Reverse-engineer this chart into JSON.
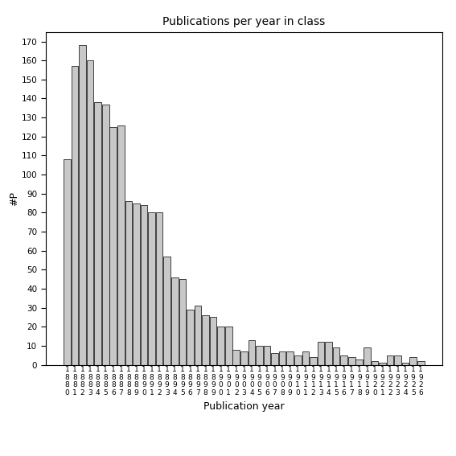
{
  "title": "Publications per year in class",
  "xlabel": "Publication year",
  "ylabel": "#P",
  "bar_color": "#c8c8c8",
  "edge_color": "#000000",
  "ylim": [
    0,
    175
  ],
  "yticks": [
    0,
    10,
    20,
    30,
    40,
    50,
    60,
    70,
    80,
    90,
    100,
    110,
    120,
    130,
    140,
    150,
    160,
    170
  ],
  "categories": [
    "1880",
    "1881",
    "1882",
    "1883",
    "1884",
    "1885",
    "1886",
    "1887",
    "1888",
    "1889",
    "1890",
    "1891",
    "1892",
    "1893",
    "1894",
    "1895",
    "1896",
    "1897",
    "1898",
    "1899",
    "1900",
    "1901",
    "1902",
    "1903",
    "1904",
    "1905",
    "1906",
    "1907",
    "1908",
    "1909",
    "1910",
    "1911",
    "1912",
    "1913",
    "1914",
    "1915",
    "1916",
    "1917",
    "1918",
    "1919",
    "1920",
    "1921",
    "1922",
    "1923",
    "1924",
    "1925",
    "1926"
  ],
  "values": [
    108,
    157,
    168,
    160,
    138,
    137,
    125,
    126,
    86,
    85,
    84,
    80,
    80,
    57,
    46,
    45,
    29,
    31,
    26,
    25,
    20,
    20,
    8,
    7,
    13,
    10,
    10,
    6,
    7,
    7,
    5,
    7,
    4,
    12,
    12,
    9,
    5,
    4,
    3,
    9,
    2,
    1,
    5,
    5,
    1,
    4,
    2
  ]
}
